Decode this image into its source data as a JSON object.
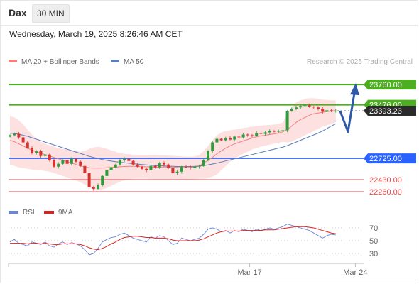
{
  "header": {
    "instrument": "Dax",
    "timeframe": "30 MIN"
  },
  "datetime": "Wednesday, March 19, 2025 8:26:46 AM CET",
  "colors": {
    "resistance": "#4caf1f",
    "current": "#333333",
    "support_primary": "#2962ff",
    "support_secondary": "#e84a4a",
    "ma20": "#f08080",
    "ma50": "#5b7db8",
    "band_fill": "#fddada",
    "candle_up": "#2e9c3a",
    "candle_down": "#d6332f",
    "arrow": "#2f5aa8",
    "rsi": "#6a86d8",
    "rsi_ma": "#e0201f"
  },
  "chart_data": [
    {
      "type": "candlestick",
      "ylim": [
        22160,
        23950
      ],
      "legend": [
        {
          "label": "MA 20 + Bollinger Bands",
          "color": "#f08080"
        },
        {
          "label": "MA 50",
          "color": "#5b7db8"
        }
      ],
      "credit": "Research © 2025 Trading Central",
      "levels": [
        {
          "value": "23760.00",
          "kind": "resistance"
        },
        {
          "value": "23476.00",
          "kind": "resistance"
        },
        {
          "value": "23393.23",
          "kind": "current"
        },
        {
          "value": "22725.00",
          "kind": "support_primary"
        },
        {
          "value": "22430.00",
          "kind": "support_secondary"
        },
        {
          "value": "22260.00",
          "kind": "support_secondary"
        }
      ],
      "x_labels": [
        {
          "label": "Mar 17",
          "index": 53
        },
        {
          "label": "Mar 24",
          "index": 77
        }
      ],
      "series": [
        {
          "name": "Price",
          "closes": [
            23050,
            23070,
            23020,
            22950,
            22870,
            22800,
            22830,
            22760,
            22780,
            22700,
            22610,
            22650,
            22700,
            22650,
            22720,
            22680,
            22620,
            22520,
            22320,
            22300,
            22350,
            22480,
            22560,
            22600,
            22640,
            22700,
            22720,
            22690,
            22640,
            22610,
            22580,
            22560,
            22620,
            22600,
            22660,
            22640,
            22590,
            22520,
            22540,
            22610,
            22600,
            22590,
            22610,
            22620,
            22700,
            22830,
            22950,
            23000,
            22980,
            23010,
            22990,
            23030,
            23020,
            23060,
            23050,
            23040,
            23080,
            23070,
            23090,
            23110,
            23100,
            23110,
            23120,
            23390,
            23420,
            23440,
            23460,
            23470,
            23450,
            23440,
            23420,
            23380,
            23400,
            23390,
            23393
          ]
        },
        {
          "name": "MA 20",
          "values": [
            22980,
            22960,
            22930,
            22900,
            22870,
            22840,
            22820,
            22800,
            22780,
            22760,
            22740,
            22720,
            22700,
            22680,
            22660,
            22640,
            22620,
            22605,
            22595,
            22590,
            22590,
            22592,
            22596,
            22600,
            22604,
            22608,
            22612,
            22614,
            22614,
            22612,
            22610,
            22608,
            22606,
            22605,
            22605,
            22606,
            22606,
            22604,
            22600,
            22598,
            22598,
            22600,
            22605,
            22620,
            22660,
            22700,
            22740,
            22790,
            22830,
            22870,
            22900,
            22930,
            22950,
            22970,
            22990,
            23010,
            23030,
            23040,
            23050,
            23060,
            23070,
            23080,
            23100,
            23130,
            23180,
            23230,
            23270,
            23300,
            23330,
            23350,
            23360,
            23370,
            23380,
            23390,
            23395
          ]
        },
        {
          "name": "MA 50",
          "values": [
            23080,
            23075,
            23065,
            23050,
            23035,
            23015,
            22995,
            22975,
            22955,
            22935,
            22915,
            22895,
            22875,
            22855,
            22835,
            22815,
            22795,
            22775,
            22755,
            22740,
            22725,
            22710,
            22698,
            22688,
            22680,
            22672,
            22665,
            22658,
            22652,
            22646,
            22640,
            22635,
            22630,
            22626,
            22622,
            22619,
            22616,
            22614,
            22612,
            22611,
            22611,
            22612,
            22614,
            22618,
            22625,
            22635,
            22647,
            22660,
            22675,
            22690,
            22705,
            22720,
            22735,
            22750,
            22765,
            22780,
            22795,
            22810,
            22825,
            22840,
            22855,
            22870,
            22885,
            22905,
            22930,
            22955,
            22980,
            23005,
            23030,
            23055,
            23080,
            23110,
            23145,
            23180,
            23210
          ]
        },
        {
          "name": "Bollinger Upper",
          "values": [
            23320,
            23300,
            23260,
            23200,
            23130,
            23060,
            23000,
            22960,
            22930,
            22910,
            22890,
            22870,
            22860,
            22850,
            22840,
            22830,
            22820,
            22830,
            22860,
            22880,
            22890,
            22880,
            22860,
            22840,
            22820,
            22800,
            22790,
            22785,
            22780,
            22778,
            22776,
            22775,
            22774,
            22772,
            22770,
            22768,
            22766,
            22762,
            22758,
            22755,
            22752,
            22750,
            22755,
            22770,
            22830,
            22900,
            22980,
            23050,
            23090,
            23110,
            23120,
            23130,
            23140,
            23150,
            23160,
            23170,
            23180,
            23185,
            23190,
            23195,
            23200,
            23210,
            23230,
            23350,
            23450,
            23510,
            23540,
            23560,
            23570,
            23570,
            23560,
            23550,
            23545,
            23540,
            23540
          ]
        },
        {
          "name": "Bollinger Lower",
          "values": [
            22640,
            22620,
            22600,
            22590,
            22580,
            22570,
            22560,
            22560,
            22550,
            22540,
            22520,
            22500,
            22480,
            22460,
            22440,
            22420,
            22390,
            22360,
            22320,
            22290,
            22280,
            22290,
            22310,
            22340,
            22370,
            22400,
            22420,
            22430,
            22440,
            22440,
            22440,
            22440,
            22438,
            22436,
            22436,
            22436,
            22436,
            22436,
            22434,
            22432,
            22432,
            22433,
            22435,
            22440,
            22440,
            22450,
            22470,
            22500,
            22560,
            22620,
            22680,
            22720,
            22760,
            22790,
            22820,
            22850,
            22870,
            22890,
            22905,
            22920,
            22935,
            22945,
            22960,
            22950,
            22960,
            22990,
            23020,
            23050,
            23080,
            23110,
            23140,
            23170,
            23190,
            23210,
            23230
          ]
        }
      ],
      "projection": {
        "start": 23393,
        "dip": 23100,
        "target": 23760
      }
    },
    {
      "type": "line",
      "ylim": [
        20,
        80
      ],
      "y_ticks": [
        "70",
        "50",
        "30"
      ],
      "legend": [
        {
          "label": "RSI",
          "color": "#6a86d8"
        },
        {
          "label": "9MA",
          "color": "#e0201f"
        }
      ],
      "series": [
        {
          "name": "RSI",
          "values": [
            48,
            52,
            46,
            44,
            42,
            48,
            46,
            44,
            48,
            42,
            40,
            45,
            48,
            44,
            47,
            45,
            42,
            36,
            28,
            30,
            38,
            48,
            52,
            55,
            56,
            60,
            62,
            58,
            54,
            52,
            50,
            48,
            56,
            54,
            58,
            56,
            50,
            44,
            46,
            54,
            52,
            50,
            52,
            54,
            60,
            68,
            70,
            68,
            64,
            66,
            62,
            66,
            64,
            68,
            66,
            64,
            68,
            66,
            68,
            70,
            68,
            70,
            72,
            76,
            74,
            72,
            70,
            68,
            66,
            62,
            58,
            54,
            58,
            60,
            59
          ]
        },
        {
          "name": "9MA",
          "values": [
            46,
            46,
            46,
            46,
            45,
            46,
            46,
            45,
            46,
            45,
            44,
            44,
            45,
            45,
            45,
            45,
            44,
            42,
            39,
            37,
            36,
            38,
            41,
            45,
            48,
            52,
            55,
            56,
            57,
            57,
            56,
            55,
            55,
            54,
            54,
            54,
            53,
            51,
            50,
            50,
            50,
            50,
            50,
            51,
            53,
            56,
            59,
            62,
            64,
            65,
            65,
            65,
            65,
            66,
            66,
            66,
            66,
            66,
            67,
            67,
            67,
            68,
            69,
            70,
            71,
            72,
            72,
            72,
            71,
            70,
            68,
            66,
            64,
            62,
            61
          ]
        }
      ]
    }
  ]
}
